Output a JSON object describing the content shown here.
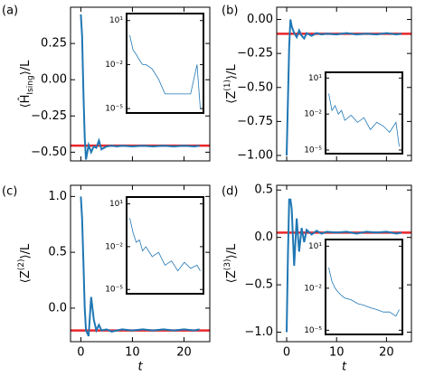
{
  "chart_data": [
    {
      "type": "line",
      "label": "(a)",
      "ylabel": [
        {
          "text": "⟨Ĥ"
        },
        {
          "text": "Ising",
          "script": "sub"
        },
        {
          "text": "⟩/L"
        }
      ],
      "x": [
        0,
        0.25,
        0.5,
        0.75,
        1,
        1.5,
        2,
        2.5,
        3,
        3.5,
        4,
        5,
        6,
        7,
        8,
        10,
        12,
        14,
        16,
        18,
        20,
        22,
        23
      ],
      "values": [
        0.45,
        0.3,
        -0.1,
        -0.4,
        -0.55,
        -0.45,
        -0.5,
        -0.46,
        -0.47,
        -0.42,
        -0.48,
        -0.46,
        -0.455,
        -0.46,
        -0.455,
        -0.46,
        -0.455,
        -0.46,
        -0.455,
        -0.46,
        -0.455,
        -0.46,
        -0.455
      ],
      "color": "#1f77b4",
      "reference": -0.455,
      "reference_color": "#e8262a",
      "xlim": [
        -2,
        25
      ],
      "xticks": [
        0,
        10,
        20
      ],
      "show_xtick_labels": false,
      "ylim": [
        -0.56,
        0.5
      ],
      "yticks": [
        {
          "value": 0.25,
          "label": "0.25"
        },
        {
          "value": 0,
          "label": "0.00"
        },
        {
          "value": -0.25,
          "label": "−0.25"
        },
        {
          "value": -0.5,
          "label": "−0.50"
        }
      ],
      "inset": {
        "type": "line",
        "log_y": true,
        "color": "#1f77b4",
        "x": [
          1,
          2,
          3,
          4,
          5,
          6,
          8,
          10,
          12,
          14,
          16,
          18,
          20,
          22,
          23
        ],
        "values": [
          1,
          0.1,
          0.05,
          0.02,
          0.01,
          0.01,
          0.005,
          0.001,
          0.0001,
          0.0001,
          0.0001,
          0.0001,
          0.0001,
          0.01,
          1e-05
        ],
        "xlim": [
          0,
          24
        ],
        "ylim": [
          5e-06,
          30
        ],
        "yticks": [
          {
            "value": 10,
            "label": "10¹"
          },
          {
            "value": 0.01,
            "label": "10⁻²"
          },
          {
            "value": 1e-05,
            "label": "10⁻⁵"
          }
        ]
      }
    },
    {
      "type": "line",
      "label": "(b)",
      "ylabel": [
        {
          "text": "⟨Z"
        },
        {
          "text": "(1)",
          "script": "sup"
        },
        {
          "text": "⟩/L"
        }
      ],
      "x": [
        0,
        0.25,
        0.5,
        0.75,
        1,
        1.5,
        2,
        2.5,
        3,
        3.5,
        4,
        5,
        6,
        7,
        8,
        10,
        12,
        14,
        16,
        18,
        20,
        22,
        23
      ],
      "values": [
        -1.0,
        -0.6,
        -0.2,
        0.0,
        -0.05,
        -0.1,
        -0.13,
        -0.08,
        -0.12,
        -0.14,
        -0.1,
        -0.12,
        -0.1,
        -0.11,
        -0.105,
        -0.11,
        -0.1,
        -0.11,
        -0.105,
        -0.11,
        -0.1,
        -0.11,
        -0.105
      ],
      "color": "#1f77b4",
      "reference": -0.105,
      "reference_color": "#e8262a",
      "xlim": [
        -2,
        25
      ],
      "xticks": [
        0,
        10,
        20
      ],
      "show_xtick_labels": false,
      "ylim": [
        -1.04,
        0.09
      ],
      "yticks": [
        {
          "value": 0,
          "label": "0.00"
        },
        {
          "value": -0.25,
          "label": "−0.25"
        },
        {
          "value": -0.5,
          "label": "−0.50"
        },
        {
          "value": -0.75,
          "label": "−0.75"
        },
        {
          "value": -1,
          "label": "−1.00"
        }
      ],
      "inset": {
        "type": "line",
        "log_y": true,
        "color": "#1f77b4",
        "x": [
          1,
          2,
          3,
          4,
          5,
          6,
          8,
          10,
          12,
          14,
          16,
          18,
          20,
          22,
          23
        ],
        "values": [
          0.5,
          0.02,
          0.05,
          0.01,
          0.02,
          0.003,
          0.008,
          0.002,
          0.005,
          0.0005,
          0.002,
          0.001,
          0.0003,
          0.002,
          2e-05
        ],
        "xlim": [
          0,
          24
        ],
        "ylim": [
          5e-06,
          30
        ],
        "yticks": [
          {
            "value": 10,
            "label": "10¹"
          },
          {
            "value": 0.01,
            "label": "10⁻²"
          },
          {
            "value": 1e-05,
            "label": "10⁻⁵"
          }
        ]
      }
    },
    {
      "type": "line",
      "label": "(c)",
      "xlabel": "t",
      "ylabel": [
        {
          "text": "⟨Z"
        },
        {
          "text": "(2)",
          "script": "sup"
        },
        {
          "text": "⟩/L"
        }
      ],
      "x": [
        0,
        0.25,
        0.5,
        0.75,
        1,
        1.5,
        2,
        2.5,
        3,
        3.5,
        4,
        5,
        6,
        7,
        8,
        10,
        12,
        14,
        16,
        18,
        20,
        22,
        23
      ],
      "values": [
        1.0,
        0.8,
        0.4,
        0.0,
        -0.2,
        -0.25,
        0.1,
        -0.1,
        -0.2,
        -0.15,
        -0.2,
        -0.19,
        -0.21,
        -0.2,
        -0.19,
        -0.2,
        -0.19,
        -0.2,
        -0.19,
        -0.2,
        -0.19,
        -0.2,
        -0.19
      ],
      "color": "#1f77b4",
      "reference": -0.2,
      "reference_color": "#e8262a",
      "xlim": [
        -2,
        25
      ],
      "xticks": [
        0,
        10,
        20
      ],
      "show_xtick_labels": true,
      "ylim": [
        -0.3,
        1.1
      ],
      "yticks": [
        {
          "value": 1,
          "label": "1.0"
        },
        {
          "value": 0.5,
          "label": "0.5"
        },
        {
          "value": 0,
          "label": "0.0"
        }
      ],
      "inset": {
        "type": "line",
        "log_y": true,
        "color": "#1f77b4",
        "x": [
          1,
          2,
          3,
          4,
          5,
          6,
          8,
          10,
          12,
          14,
          16,
          18,
          20,
          22,
          23
        ],
        "values": [
          1,
          0.1,
          0.02,
          0.03,
          0.005,
          0.01,
          0.002,
          0.004,
          0.0005,
          0.001,
          0.0002,
          0.0008,
          0.0003,
          0.0005,
          0.0002
        ],
        "xlim": [
          0,
          24
        ],
        "ylim": [
          5e-06,
          30
        ],
        "yticks": [
          {
            "value": 10,
            "label": "10¹"
          },
          {
            "value": 0.01,
            "label": "10⁻²"
          },
          {
            "value": 1e-05,
            "label": "10⁻⁵"
          }
        ]
      }
    },
    {
      "type": "line",
      "label": "(d)",
      "xlabel": "t",
      "ylabel": [
        {
          "text": "⟨Z"
        },
        {
          "text": "(3)",
          "script": "sup"
        },
        {
          "text": "⟩/L"
        }
      ],
      "x": [
        0,
        0.25,
        0.5,
        0.75,
        1,
        1.5,
        2,
        2.5,
        3,
        3.5,
        4,
        5,
        6,
        7,
        8,
        10,
        12,
        14,
        16,
        18,
        20,
        22,
        23
      ],
      "values": [
        -1.0,
        -0.2,
        0.4,
        0.4,
        0.3,
        -0.3,
        0.2,
        -0.15,
        0.1,
        -0.05,
        0.08,
        0.03,
        0.07,
        0.04,
        0.06,
        0.05,
        0.06,
        0.04,
        0.06,
        0.05,
        0.06,
        0.04,
        0.05
      ],
      "color": "#1f77b4",
      "reference": 0.05,
      "reference_color": "#e8262a",
      "xlim": [
        -2,
        25
      ],
      "xticks": [
        0,
        10,
        20
      ],
      "show_xtick_labels": true,
      "ylim": [
        -1.1,
        0.55
      ],
      "yticks": [
        {
          "value": 0.5,
          "label": "0.5"
        },
        {
          "value": 0,
          "label": "0.0"
        },
        {
          "value": -0.5,
          "label": "−0.5"
        },
        {
          "value": -1,
          "label": "−1.0"
        }
      ],
      "inset": {
        "type": "line",
        "log_y": true,
        "color": "#1f77b4",
        "x": [
          1,
          2,
          3,
          4,
          5,
          6,
          8,
          10,
          12,
          14,
          16,
          18,
          20,
          22,
          23
        ],
        "values": [
          0.3,
          0.03,
          0.01,
          0.005,
          0.003,
          0.002,
          0.0015,
          0.0008,
          0.0006,
          0.0004,
          0.0003,
          0.0002,
          0.0002,
          0.0001,
          0.0003
        ],
        "xlim": [
          0,
          24
        ],
        "ylim": [
          5e-06,
          30
        ],
        "yticks": [
          {
            "value": 10,
            "label": "10¹"
          },
          {
            "value": 0.01,
            "label": "10⁻²"
          },
          {
            "value": 1e-05,
            "label": "10⁻⁵"
          }
        ]
      }
    }
  ]
}
